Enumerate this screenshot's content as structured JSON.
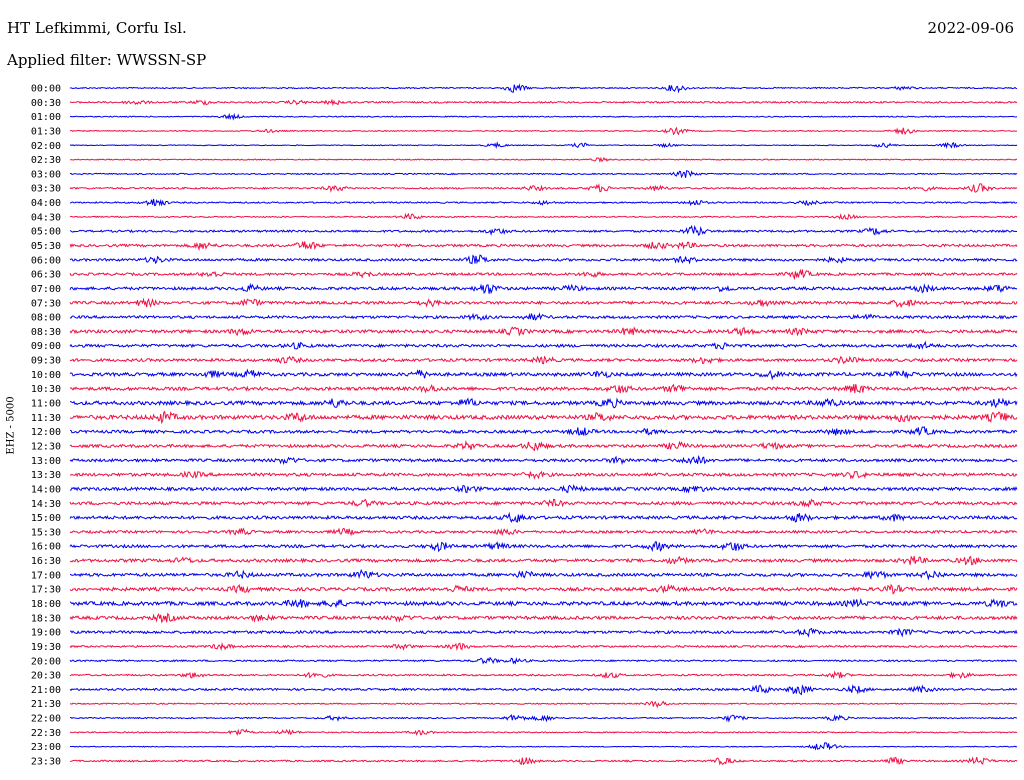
{
  "header": {
    "station": "HT Lefkimmi, Corfu Isl.",
    "date": "2022-09-06",
    "filter_label": "Applied filter: WWSSN-SP"
  },
  "channel_label": "EHZ - 5000",
  "colors": {
    "odd_trace": "#0000ee",
    "even_trace": "#ee1144"
  },
  "chart_data": {
    "type": "line",
    "title": "HT Lefkimmi, Corfu Isl.",
    "subtitle": "Applied filter: WWSSN-SP",
    "ylabel": "EHZ - 5000",
    "xlabel": "",
    "rows": [
      {
        "label": "00:00",
        "color": "#0000ee",
        "noise": 0.6,
        "events": [
          [
            0.47,
            4
          ],
          [
            0.64,
            3.5
          ],
          [
            0.88,
            1.5
          ]
        ]
      },
      {
        "label": "00:30",
        "color": "#ee1144",
        "noise": 0.8,
        "events": [
          [
            0.07,
            2
          ],
          [
            0.14,
            1.8
          ],
          [
            0.24,
            1.5
          ],
          [
            0.28,
            1.8
          ]
        ]
      },
      {
        "label": "01:00",
        "color": "#0000ee",
        "noise": 0.5,
        "events": [
          [
            0.17,
            2
          ]
        ]
      },
      {
        "label": "01:30",
        "color": "#ee1144",
        "noise": 0.5,
        "events": [
          [
            0.21,
            1.2
          ],
          [
            0.64,
            3
          ],
          [
            0.88,
            3
          ]
        ]
      },
      {
        "label": "02:00",
        "color": "#0000ee",
        "noise": 0.4,
        "events": [
          [
            0.45,
            2
          ],
          [
            0.54,
            2
          ],
          [
            0.63,
            1.5
          ],
          [
            0.86,
            2
          ],
          [
            0.93,
            2.2
          ]
        ]
      },
      {
        "label": "02:30",
        "color": "#ee1144",
        "noise": 0.5,
        "events": [
          [
            0.56,
            1.5
          ]
        ]
      },
      {
        "label": "03:00",
        "color": "#0000ee",
        "noise": 0.6,
        "events": [
          [
            0.65,
            3.5
          ]
        ]
      },
      {
        "label": "03:30",
        "color": "#ee1144",
        "noise": 0.8,
        "events": [
          [
            0.28,
            2.5
          ],
          [
            0.49,
            2
          ],
          [
            0.56,
            3
          ],
          [
            0.62,
            2
          ],
          [
            0.9,
            2
          ],
          [
            0.96,
            4
          ]
        ]
      },
      {
        "label": "04:00",
        "color": "#0000ee",
        "noise": 0.7,
        "events": [
          [
            0.09,
            4
          ],
          [
            0.5,
            1.5
          ],
          [
            0.66,
            2.5
          ],
          [
            0.78,
            1.8
          ]
        ]
      },
      {
        "label": "04:30",
        "color": "#ee1144",
        "noise": 0.6,
        "events": [
          [
            0.36,
            2.5
          ],
          [
            0.82,
            2
          ]
        ]
      },
      {
        "label": "05:00",
        "color": "#0000ee",
        "noise": 1.0,
        "events": [
          [
            0.45,
            2.5
          ],
          [
            0.66,
            4.5
          ],
          [
            0.85,
            3
          ]
        ]
      },
      {
        "label": "05:30",
        "color": "#ee1144",
        "noise": 1.2,
        "events": [
          [
            0.14,
            3
          ],
          [
            0.25,
            4
          ],
          [
            0.62,
            3
          ],
          [
            0.65,
            2.5
          ]
        ]
      },
      {
        "label": "06:00",
        "color": "#0000ee",
        "noise": 1.2,
        "events": [
          [
            0.09,
            2.5
          ],
          [
            0.43,
            4
          ],
          [
            0.65,
            2.5
          ],
          [
            0.81,
            2
          ]
        ]
      },
      {
        "label": "06:30",
        "color": "#ee1144",
        "noise": 1.2,
        "events": [
          [
            0.15,
            2.5
          ],
          [
            0.31,
            2
          ],
          [
            0.55,
            2
          ],
          [
            0.77,
            4
          ]
        ]
      },
      {
        "label": "07:00",
        "color": "#0000ee",
        "noise": 1.4,
        "events": [
          [
            0.19,
            2.5
          ],
          [
            0.44,
            4.5
          ],
          [
            0.53,
            2
          ],
          [
            0.69,
            2
          ],
          [
            0.9,
            3
          ],
          [
            0.98,
            3
          ]
        ]
      },
      {
        "label": "07:30",
        "color": "#ee1144",
        "noise": 1.4,
        "events": [
          [
            0.08,
            3
          ],
          [
            0.19,
            3
          ],
          [
            0.38,
            2.5
          ],
          [
            0.73,
            2.5
          ],
          [
            0.88,
            3.5
          ]
        ]
      },
      {
        "label": "08:00",
        "color": "#0000ee",
        "noise": 1.3,
        "events": [
          [
            0.43,
            2
          ],
          [
            0.49,
            2.5
          ],
          [
            0.84,
            2
          ]
        ]
      },
      {
        "label": "08:30",
        "color": "#ee1144",
        "noise": 1.5,
        "events": [
          [
            0.18,
            2.5
          ],
          [
            0.47,
            3
          ],
          [
            0.59,
            3
          ],
          [
            0.71,
            3
          ],
          [
            0.77,
            2.5
          ]
        ]
      },
      {
        "label": "09:00",
        "color": "#0000ee",
        "noise": 1.4,
        "events": [
          [
            0.24,
            2
          ],
          [
            0.69,
            2.5
          ],
          [
            0.9,
            2.5
          ]
        ]
      },
      {
        "label": "09:30",
        "color": "#ee1144",
        "noise": 1.4,
        "events": [
          [
            0.23,
            2.5
          ],
          [
            0.5,
            2.5
          ],
          [
            0.67,
            2.5
          ],
          [
            0.82,
            3
          ]
        ]
      },
      {
        "label": "10:00",
        "color": "#0000ee",
        "noise": 1.6,
        "events": [
          [
            0.15,
            2.5
          ],
          [
            0.19,
            3
          ],
          [
            0.37,
            3
          ],
          [
            0.56,
            2.5
          ],
          [
            0.74,
            3
          ],
          [
            0.88,
            2.5
          ]
        ]
      },
      {
        "label": "10:30",
        "color": "#ee1144",
        "noise": 1.6,
        "events": [
          [
            0.38,
            2.5
          ],
          [
            0.58,
            3.5
          ],
          [
            0.64,
            3
          ],
          [
            0.83,
            4
          ]
        ]
      },
      {
        "label": "11:00",
        "color": "#0000ee",
        "noise": 1.8,
        "events": [
          [
            0.28,
            3.5
          ],
          [
            0.42,
            3
          ],
          [
            0.57,
            3.5
          ],
          [
            0.8,
            3
          ],
          [
            0.98,
            3
          ]
        ]
      },
      {
        "label": "11:30",
        "color": "#ee1144",
        "noise": 2.0,
        "events": [
          [
            0.1,
            4
          ],
          [
            0.24,
            3
          ],
          [
            0.56,
            3
          ],
          [
            0.88,
            3
          ],
          [
            0.98,
            4
          ]
        ]
      },
      {
        "label": "12:00",
        "color": "#0000ee",
        "noise": 1.4,
        "events": [
          [
            0.54,
            3.5
          ],
          [
            0.61,
            2
          ],
          [
            0.81,
            2.5
          ],
          [
            0.9,
            3.5
          ]
        ]
      },
      {
        "label": "12:30",
        "color": "#ee1144",
        "noise": 1.4,
        "events": [
          [
            0.42,
            3
          ],
          [
            0.49,
            4
          ],
          [
            0.64,
            3
          ],
          [
            0.74,
            2.5
          ]
        ]
      },
      {
        "label": "13:00",
        "color": "#0000ee",
        "noise": 1.4,
        "events": [
          [
            0.23,
            2.5
          ],
          [
            0.58,
            2.5
          ],
          [
            0.66,
            4
          ]
        ]
      },
      {
        "label": "13:30",
        "color": "#ee1144",
        "noise": 1.5,
        "events": [
          [
            0.13,
            2
          ],
          [
            0.49,
            2.5
          ],
          [
            0.83,
            2.5
          ]
        ]
      },
      {
        "label": "14:00",
        "color": "#0000ee",
        "noise": 1.5,
        "events": [
          [
            0.42,
            2.5
          ],
          [
            0.53,
            2.5
          ],
          [
            0.66,
            2.5
          ]
        ]
      },
      {
        "label": "14:30",
        "color": "#ee1144",
        "noise": 1.5,
        "events": [
          [
            0.31,
            2.5
          ],
          [
            0.51,
            2.5
          ],
          [
            0.78,
            2.5
          ]
        ]
      },
      {
        "label": "15:00",
        "color": "#0000ee",
        "noise": 1.5,
        "events": [
          [
            0.47,
            4
          ],
          [
            0.77,
            3.5
          ],
          [
            0.87,
            2.5
          ]
        ]
      },
      {
        "label": "15:30",
        "color": "#ee1144",
        "noise": 1.2,
        "events": [
          [
            0.18,
            2.5
          ],
          [
            0.29,
            2.5
          ],
          [
            0.46,
            2.5
          ],
          [
            0.67,
            2
          ]
        ]
      },
      {
        "label": "16:00",
        "color": "#0000ee",
        "noise": 1.4,
        "events": [
          [
            0.39,
            3.5
          ],
          [
            0.45,
            2.5
          ],
          [
            0.62,
            3.5
          ],
          [
            0.7,
            4
          ]
        ]
      },
      {
        "label": "16:30",
        "color": "#ee1144",
        "noise": 1.5,
        "events": [
          [
            0.12,
            2
          ],
          [
            0.64,
            2.5
          ],
          [
            0.89,
            3.5
          ],
          [
            0.95,
            3
          ]
        ]
      },
      {
        "label": "17:00",
        "color": "#0000ee",
        "noise": 1.5,
        "events": [
          [
            0.18,
            2.5
          ],
          [
            0.31,
            3.5
          ],
          [
            0.48,
            2.5
          ],
          [
            0.85,
            3.5
          ],
          [
            0.91,
            3
          ]
        ]
      },
      {
        "label": "17:30",
        "color": "#ee1144",
        "noise": 1.6,
        "events": [
          [
            0.18,
            2.5
          ],
          [
            0.41,
            2.5
          ],
          [
            0.63,
            2.5
          ],
          [
            0.87,
            3
          ]
        ]
      },
      {
        "label": "18:00",
        "color": "#0000ee",
        "noise": 1.8,
        "events": [
          [
            0.24,
            3
          ],
          [
            0.28,
            3
          ],
          [
            0.83,
            2.5
          ],
          [
            0.98,
            3
          ]
        ]
      },
      {
        "label": "18:30",
        "color": "#ee1144",
        "noise": 1.6,
        "events": [
          [
            0.1,
            3
          ],
          [
            0.2,
            2
          ],
          [
            0.35,
            2
          ]
        ]
      },
      {
        "label": "19:00",
        "color": "#0000ee",
        "noise": 1.3,
        "events": [
          [
            0.78,
            3
          ],
          [
            0.88,
            2.5
          ]
        ]
      },
      {
        "label": "19:30",
        "color": "#ee1144",
        "noise": 0.9,
        "events": [
          [
            0.16,
            2.5
          ],
          [
            0.35,
            2
          ],
          [
            0.41,
            3
          ]
        ]
      },
      {
        "label": "20:00",
        "color": "#0000ee",
        "noise": 0.8,
        "events": [
          [
            0.44,
            2.5
          ],
          [
            0.47,
            2
          ]
        ]
      },
      {
        "label": "20:30",
        "color": "#ee1144",
        "noise": 0.8,
        "events": [
          [
            0.13,
            2.5
          ],
          [
            0.26,
            3
          ],
          [
            0.57,
            2.5
          ],
          [
            0.81,
            2.5
          ],
          [
            0.94,
            2.5
          ]
        ]
      },
      {
        "label": "21:00",
        "color": "#0000ee",
        "noise": 1.0,
        "events": [
          [
            0.73,
            3.5
          ],
          [
            0.77,
            4.5
          ],
          [
            0.83,
            3
          ],
          [
            0.9,
            2.5
          ]
        ]
      },
      {
        "label": "21:30",
        "color": "#ee1144",
        "noise": 0.6,
        "events": [
          [
            0.62,
            3
          ]
        ]
      },
      {
        "label": "22:00",
        "color": "#0000ee",
        "noise": 0.6,
        "events": [
          [
            0.28,
            2
          ],
          [
            0.47,
            3
          ],
          [
            0.5,
            2.5
          ],
          [
            0.7,
            3
          ],
          [
            0.81,
            2.5
          ]
        ]
      },
      {
        "label": "22:30",
        "color": "#ee1144",
        "noise": 0.6,
        "events": [
          [
            0.18,
            3
          ],
          [
            0.23,
            2
          ],
          [
            0.37,
            2
          ]
        ]
      },
      {
        "label": "23:00",
        "color": "#0000ee",
        "noise": 0.4,
        "events": [
          [
            0.79,
            2
          ],
          [
            0.8,
            2.5
          ]
        ]
      },
      {
        "label": "23:30",
        "color": "#ee1144",
        "noise": 0.8,
        "events": [
          [
            0.48,
            3
          ],
          [
            0.69,
            3
          ],
          [
            0.87,
            3
          ],
          [
            0.96,
            3.5
          ]
        ]
      }
    ]
  }
}
